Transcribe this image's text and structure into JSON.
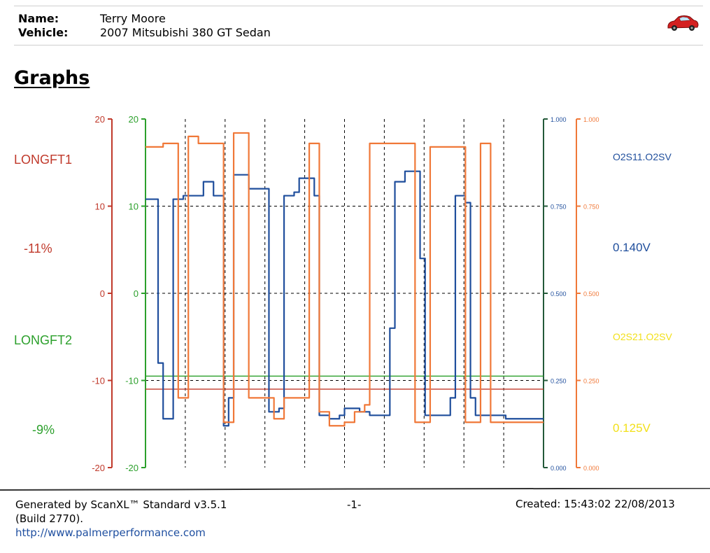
{
  "header": {
    "name_label": "Name:",
    "name_value": "Terry Moore",
    "vehicle_label": "Vehicle:",
    "vehicle_value": "2007 Mitsubishi 380 GT Sedan"
  },
  "section_title": "Graphs",
  "colors": {
    "longft1": "#c0392b",
    "longft2": "#2ca02c",
    "o2s11": "#1f4e9c",
    "o2s21": "#f07838",
    "o2s21_label": "#f2e01a"
  },
  "chart_data": {
    "type": "line",
    "x": [
      0,
      1,
      2,
      3,
      4,
      5,
      6,
      7,
      8,
      9,
      10,
      11,
      12,
      13,
      14,
      15,
      16,
      17,
      18,
      19,
      20,
      21,
      22,
      23,
      24,
      25,
      26,
      27,
      28,
      29,
      30,
      31,
      32,
      33,
      34,
      35,
      36,
      37,
      38,
      39,
      40,
      41,
      42,
      43,
      44,
      45,
      46,
      47,
      48,
      49,
      50,
      51,
      52,
      53,
      54,
      55,
      56,
      57,
      58,
      59,
      60,
      61,
      62,
      63,
      64,
      65,
      66,
      67,
      68,
      69,
      70,
      71,
      72,
      73,
      74,
      75,
      76,
      77,
      78,
      79
    ],
    "labels": {
      "longft1_name": "LONGFT1",
      "longft1_value": "-11%",
      "longft2_name": "LONGFT2",
      "longft2_value": "-9%",
      "o2s11_name": "O2S11.O2SV",
      "o2s11_value": "0.140V",
      "o2s21_name": "O2S21.O2SV",
      "o2s21_value": "0.125V"
    },
    "left_axes": {
      "ylim": [
        -20,
        20
      ],
      "ticks": [
        "20",
        "10",
        "0",
        "-10",
        "-20"
      ]
    },
    "right_axes": {
      "ylim": [
        0,
        1
      ],
      "ticks": [
        "1.000",
        "0.750",
        "0.500",
        "0.250",
        "0.000"
      ]
    },
    "series": [
      {
        "name": "LONGFT1",
        "axis": "left",
        "values": [
          -11,
          -11,
          -11,
          -11,
          -11,
          -11,
          -11,
          -11,
          -11,
          -11,
          -11,
          -11,
          -11,
          -11,
          -11,
          -11,
          -11,
          -11,
          -11,
          -11,
          -11,
          -11,
          -11,
          -11,
          -11,
          -11,
          -11,
          -11,
          -11,
          -11,
          -11,
          -11,
          -11,
          -11,
          -11,
          -11,
          -11,
          -11,
          -11,
          -11,
          -11,
          -11,
          -11,
          -11,
          -11,
          -11,
          -11,
          -11,
          -11,
          -11,
          -11,
          -11,
          -11,
          -11,
          -11,
          -11,
          -11,
          -11,
          -11,
          -11,
          -11,
          -11,
          -11,
          -11,
          -11,
          -11,
          -11,
          -11,
          -11,
          -11,
          -11,
          -11,
          -11,
          -11,
          -11,
          -11,
          -11,
          -11,
          -11,
          -11
        ]
      },
      {
        "name": "LONGFT2",
        "axis": "left",
        "values": [
          -9.5,
          -9.5,
          -9.5,
          -9.5,
          -9.5,
          -9.5,
          -9.5,
          -9.5,
          -9.5,
          -9.5,
          -9.5,
          -9.5,
          -9.5,
          -9.5,
          -9.5,
          -9.5,
          -9.5,
          -9.5,
          -9.5,
          -9.5,
          -9.5,
          -9.5,
          -9.5,
          -9.5,
          -9.5,
          -9.5,
          -9.5,
          -9.5,
          -9.5,
          -9.5,
          -9.5,
          -9.5,
          -9.5,
          -9.5,
          -9.5,
          -9.5,
          -9.5,
          -9.5,
          -9.5,
          -9.5,
          -9.5,
          -9.5,
          -9.5,
          -9.5,
          -9.5,
          -9.5,
          -9.5,
          -9.5,
          -9.5,
          -9.5,
          -9.5,
          -9.5,
          -9.5,
          -9.5,
          -9.5,
          -9.5,
          -9.5,
          -9.5,
          -9.5,
          -9.5,
          -9.5,
          -9.5,
          -9.5,
          -9.5,
          -9.5,
          -9.5,
          -9.5,
          -9.5,
          -9.5,
          -9.5,
          -9.5,
          -9.5,
          -9.5,
          -9.5,
          -9.5,
          -9.5,
          -9.5,
          -9.5,
          -9.5,
          -9.5
        ]
      },
      {
        "name": "O2S11.O2SV",
        "axis": "right",
        "values": [
          0.77,
          0.77,
          0.77,
          0.3,
          0.14,
          0.14,
          0.77,
          0.77,
          0.78,
          0.78,
          0.78,
          0.78,
          0.82,
          0.82,
          0.78,
          0.78,
          0.12,
          0.2,
          0.84,
          0.84,
          0.84,
          0.8,
          0.8,
          0.8,
          0.8,
          0.16,
          0.16,
          0.17,
          0.78,
          0.78,
          0.79,
          0.83,
          0.83,
          0.83,
          0.78,
          0.15,
          0.15,
          0.14,
          0.14,
          0.15,
          0.17,
          0.17,
          0.17,
          0.16,
          0.16,
          0.15,
          0.15,
          0.15,
          0.15,
          0.4,
          0.82,
          0.82,
          0.85,
          0.85,
          0.85,
          0.6,
          0.15,
          0.15,
          0.15,
          0.15,
          0.15,
          0.2,
          0.78,
          0.78,
          0.76,
          0.2,
          0.15,
          0.15,
          0.15,
          0.15,
          0.15,
          0.15,
          0.14,
          0.14,
          0.14,
          0.14,
          0.14,
          0.14,
          0.14,
          0.14
        ]
      },
      {
        "name": "O2S21.O2SV",
        "axis": "right",
        "values": [
          0.92,
          0.92,
          0.92,
          0.92,
          0.93,
          0.93,
          0.93,
          0.2,
          0.2,
          0.95,
          0.95,
          0.93,
          0.93,
          0.93,
          0.93,
          0.93,
          0.13,
          0.13,
          0.96,
          0.96,
          0.96,
          0.2,
          0.2,
          0.2,
          0.2,
          0.2,
          0.14,
          0.14,
          0.2,
          0.2,
          0.2,
          0.2,
          0.2,
          0.93,
          0.93,
          0.16,
          0.16,
          0.12,
          0.12,
          0.12,
          0.13,
          0.13,
          0.16,
          0.16,
          0.18,
          0.93,
          0.93,
          0.93,
          0.93,
          0.93,
          0.93,
          0.93,
          0.93,
          0.93,
          0.13,
          0.13,
          0.13,
          0.92,
          0.92,
          0.92,
          0.92,
          0.92,
          0.92,
          0.92,
          0.13,
          0.13,
          0.13,
          0.93,
          0.93,
          0.13,
          0.13,
          0.13,
          0.13,
          0.13,
          0.13,
          0.13,
          0.13,
          0.13,
          0.13,
          0.13
        ]
      }
    ],
    "grid": "dashed vertical and horizontal",
    "legend_placement": "sides"
  },
  "footer": {
    "generated": "Generated by ScanXL™ Standard v3.5.1",
    "build": "(Build 2770).",
    "url": "http://www.palmerperformance.com",
    "page": "-1-",
    "created": "Created: 15:43:02 22/08/2013"
  }
}
